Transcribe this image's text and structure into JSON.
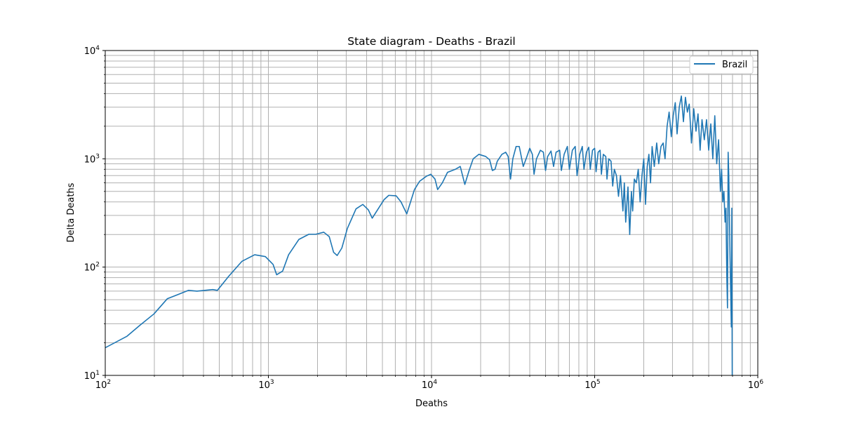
{
  "chart_data": {
    "type": "line",
    "title": "State diagram - Deaths - Brazil",
    "xlabel": "Deaths",
    "ylabel": "Delta Deaths",
    "xscale": "log",
    "yscale": "log",
    "xlim": [
      100,
      1000000
    ],
    "ylim": [
      10,
      10000
    ],
    "grid": "major and minor",
    "legend_position": "top-right",
    "x_tick_labels": [
      {
        "base": "10",
        "exp": "2",
        "value": 100
      },
      {
        "base": "10",
        "exp": "3",
        "value": 1000
      },
      {
        "base": "10",
        "exp": "4",
        "value": 10000
      },
      {
        "base": "10",
        "exp": "5",
        "value": 100000
      },
      {
        "base": "10",
        "exp": "6",
        "value": 1000000
      }
    ],
    "y_tick_labels": [
      {
        "base": "10",
        "exp": "1",
        "value": 10
      },
      {
        "base": "10",
        "exp": "2",
        "value": 100
      },
      {
        "base": "10",
        "exp": "3",
        "value": 1000
      },
      {
        "base": "10",
        "exp": "4",
        "value": 10000
      }
    ],
    "series": [
      {
        "name": "Brazil",
        "color": "#1f77b4",
        "points": [
          [
            100,
            18
          ],
          [
            136,
            23
          ],
          [
            163,
            29
          ],
          [
            199,
            37
          ],
          [
            240,
            51
          ],
          [
            324,
            61
          ],
          [
            365,
            60
          ],
          [
            456,
            62
          ],
          [
            487,
            61
          ],
          [
            570,
            82
          ],
          [
            688,
            113
          ],
          [
            824,
            130
          ],
          [
            958,
            125
          ],
          [
            1068,
            106
          ],
          [
            1124,
            85
          ],
          [
            1223,
            92
          ],
          [
            1330,
            130
          ],
          [
            1537,
            180
          ],
          [
            1770,
            201
          ],
          [
            1950,
            201
          ],
          [
            2185,
            210
          ],
          [
            2361,
            191
          ],
          [
            2510,
            137
          ],
          [
            2640,
            128
          ],
          [
            2820,
            150
          ],
          [
            3050,
            228
          ],
          [
            3444,
            345
          ],
          [
            3790,
            379
          ],
          [
            4100,
            338
          ],
          [
            4330,
            283
          ],
          [
            5120,
            420
          ],
          [
            5470,
            460
          ],
          [
            6072,
            455
          ],
          [
            6500,
            400
          ],
          [
            7050,
            310
          ],
          [
            7860,
            520
          ],
          [
            8450,
            620
          ],
          [
            9300,
            690
          ],
          [
            9900,
            720
          ],
          [
            10500,
            650
          ],
          [
            10900,
            520
          ],
          [
            11650,
            600
          ],
          [
            12530,
            750
          ],
          [
            14000,
            800
          ],
          [
            15000,
            850
          ],
          [
            16000,
            580
          ],
          [
            17000,
            780
          ],
          [
            18000,
            1000
          ],
          [
            19500,
            1100
          ],
          [
            21500,
            1050
          ],
          [
            22700,
            980
          ],
          [
            23600,
            780
          ],
          [
            24500,
            800
          ],
          [
            25300,
            950
          ],
          [
            27000,
            1100
          ],
          [
            28500,
            1150
          ],
          [
            29500,
            1050
          ],
          [
            30500,
            650
          ],
          [
            31500,
            1000
          ],
          [
            33000,
            1300
          ],
          [
            34500,
            1300
          ],
          [
            36500,
            850
          ],
          [
            38000,
            1000
          ],
          [
            40000,
            1250
          ],
          [
            41500,
            1100
          ],
          [
            42500,
            720
          ],
          [
            44000,
            1000
          ],
          [
            46500,
            1200
          ],
          [
            48500,
            1150
          ],
          [
            50000,
            780
          ],
          [
            51500,
            1050
          ],
          [
            54000,
            1180
          ],
          [
            56000,
            850
          ],
          [
            58000,
            1150
          ],
          [
            61000,
            1200
          ],
          [
            62500,
            780
          ],
          [
            65000,
            1100
          ],
          [
            68000,
            1300
          ],
          [
            70000,
            800
          ],
          [
            73000,
            1200
          ],
          [
            76000,
            1300
          ],
          [
            78000,
            700
          ],
          [
            81000,
            1100
          ],
          [
            84000,
            1300
          ],
          [
            86000,
            800
          ],
          [
            89000,
            1150
          ],
          [
            92000,
            1280
          ],
          [
            94000,
            800
          ],
          [
            97000,
            1200
          ],
          [
            100000,
            1250
          ],
          [
            102000,
            760
          ],
          [
            105000,
            1150
          ],
          [
            108000,
            1200
          ],
          [
            110000,
            720
          ],
          [
            113000,
            1100
          ],
          [
            117000,
            1050
          ],
          [
            119000,
            650
          ],
          [
            122000,
            1000
          ],
          [
            126000,
            950
          ],
          [
            129000,
            560
          ],
          [
            132000,
            800
          ],
          [
            136000,
            700
          ],
          [
            140000,
            450
          ],
          [
            144000,
            700
          ],
          [
            149000,
            330
          ],
          [
            152000,
            600
          ],
          [
            155000,
            260
          ],
          [
            160000,
            550
          ],
          [
            164000,
            200
          ],
          [
            168000,
            500
          ],
          [
            171000,
            330
          ],
          [
            175000,
            650
          ],
          [
            180000,
            600
          ],
          [
            185000,
            800
          ],
          [
            190000,
            400
          ],
          [
            195000,
            700
          ],
          [
            200000,
            1000
          ],
          [
            205000,
            380
          ],
          [
            210000,
            850
          ],
          [
            215000,
            1100
          ],
          [
            220000,
            600
          ],
          [
            225000,
            1300
          ],
          [
            232000,
            850
          ],
          [
            240000,
            1400
          ],
          [
            247000,
            900
          ],
          [
            255000,
            1300
          ],
          [
            263000,
            1400
          ],
          [
            270000,
            1000
          ],
          [
            278000,
            2000
          ],
          [
            286000,
            2700
          ],
          [
            295000,
            1600
          ],
          [
            303000,
            2500
          ],
          [
            312000,
            3300
          ],
          [
            320000,
            1700
          ],
          [
            330000,
            3000
          ],
          [
            340000,
            3800
          ],
          [
            350000,
            2200
          ],
          [
            360000,
            3700
          ],
          [
            370000,
            2700
          ],
          [
            380000,
            3200
          ],
          [
            392000,
            1400
          ],
          [
            405000,
            2900
          ],
          [
            418000,
            1800
          ],
          [
            430000,
            2600
          ],
          [
            443000,
            1200
          ],
          [
            455000,
            2300
          ],
          [
            470000,
            1500
          ],
          [
            485000,
            2300
          ],
          [
            500000,
            1200
          ],
          [
            515000,
            2100
          ],
          [
            530000,
            1000
          ],
          [
            545000,
            2500
          ],
          [
            560000,
            900
          ],
          [
            575000,
            1500
          ],
          [
            590000,
            500
          ],
          [
            600000,
            800
          ],
          [
            610000,
            400
          ],
          [
            620000,
            500
          ],
          [
            630000,
            260
          ],
          [
            638000,
            350
          ],
          [
            646000,
            80
          ],
          [
            652000,
            42
          ],
          [
            658000,
            1150
          ],
          [
            664000,
            700
          ],
          [
            670000,
            300
          ],
          [
            676000,
            120
          ],
          [
            682000,
            60
          ],
          [
            688000,
            28
          ],
          [
            693000,
            350
          ],
          [
            697000,
            10
          ]
        ]
      }
    ]
  }
}
